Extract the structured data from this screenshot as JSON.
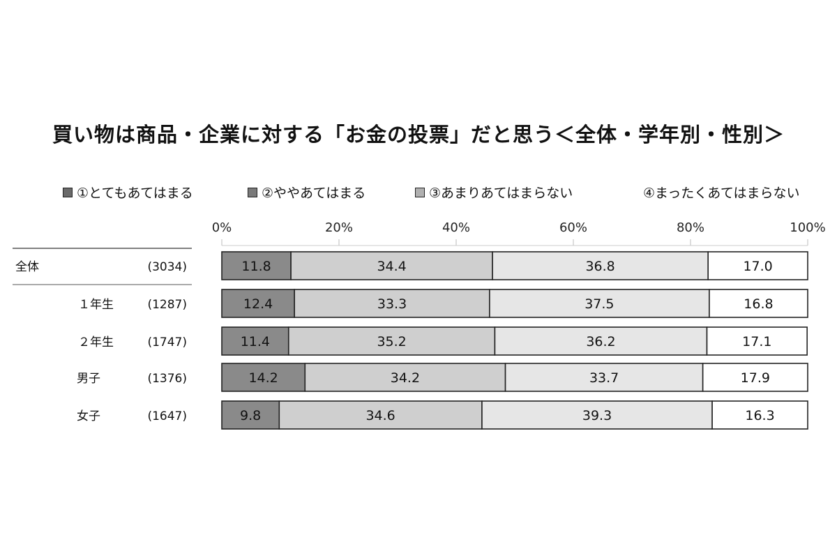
{
  "chart_data": {
    "type": "bar",
    "orientation": "horizontal-stacked-percent",
    "title": "買い物は商品・企業に対する「お金の投票」だと思う＜全体・学年別・性別＞",
    "legend_placement": "top",
    "x_ticks": [
      "0%",
      "20%",
      "40%",
      "60%",
      "80%",
      "100%"
    ],
    "xlim": [
      0,
      100
    ],
    "categories": [
      "全体",
      "１年生",
      "２年生",
      "男子",
      "女子"
    ],
    "sample_sizes": [
      "(3034)",
      "(1287)",
      "(1747)",
      "(1376)",
      "(1647)"
    ],
    "series": [
      {
        "name": "①とてもあてはまる",
        "values": [
          11.8,
          12.4,
          11.4,
          14.2,
          9.8
        ],
        "color": "#8a8a8a"
      },
      {
        "name": "②ややあてはまる",
        "values": [
          34.4,
          33.3,
          35.2,
          34.2,
          34.6
        ],
        "color": "#cfcfcf"
      },
      {
        "name": "③あまりあてはまらない",
        "values": [
          36.8,
          37.5,
          36.2,
          33.7,
          39.3
        ],
        "color": "#e6e6e6"
      },
      {
        "name": "④まったくあてはまらない",
        "values": [
          17.0,
          16.8,
          17.1,
          17.9,
          16.3
        ],
        "color": "#ffffff"
      }
    ],
    "data_labels": [
      [
        "11.8",
        "34.4",
        "36.8",
        "17.0"
      ],
      [
        "12.4",
        "33.3",
        "37.5",
        "16.8"
      ],
      [
        "11.4",
        "35.2",
        "36.2",
        "17.1"
      ],
      [
        "14.2",
        "34.2",
        "33.7",
        "17.9"
      ],
      [
        "9.8",
        "34.6",
        "39.3",
        "16.3"
      ]
    ],
    "grid": false
  }
}
